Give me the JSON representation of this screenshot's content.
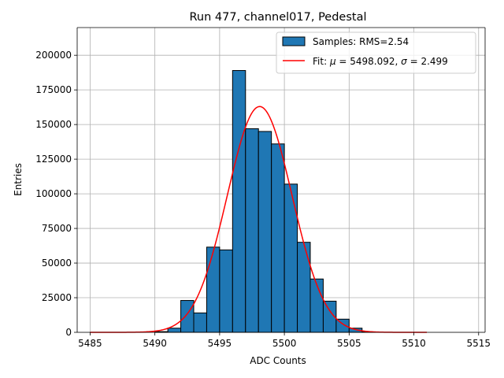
{
  "chart_data": {
    "type": "bar",
    "title": "Run 477, channel017, Pedestal",
    "xlabel": "ADC Counts",
    "ylabel": "Entries",
    "xlim": [
      5484.0,
      5515.5
    ],
    "ylim": [
      0,
      220000
    ],
    "xticks": [
      5485,
      5490,
      5495,
      5500,
      5505,
      5510,
      5515
    ],
    "yticks": [
      0,
      25000,
      50000,
      75000,
      100000,
      125000,
      150000,
      175000,
      200000
    ],
    "grid": true,
    "legend_position": "top-right",
    "bin_width": 1,
    "bins": [
      {
        "left": 5490,
        "count": 500
      },
      {
        "left": 5491,
        "count": 3000
      },
      {
        "left": 5492,
        "count": 23000
      },
      {
        "left": 5493,
        "count": 14000
      },
      {
        "left": 5494,
        "count": 61500
      },
      {
        "left": 5495,
        "count": 59500
      },
      {
        "left": 5496,
        "count": 189000
      },
      {
        "left": 5497,
        "count": 147000
      },
      {
        "left": 5498,
        "count": 145000
      },
      {
        "left": 5499,
        "count": 136000
      },
      {
        "left": 5500,
        "count": 107000
      },
      {
        "left": 5501,
        "count": 65000
      },
      {
        "left": 5502,
        "count": 38500
      },
      {
        "left": 5503,
        "count": 22500
      },
      {
        "left": 5504,
        "count": 9500
      },
      {
        "left": 5505,
        "count": 3000
      },
      {
        "left": 5506,
        "count": 300
      }
    ],
    "fit": {
      "mu": 5498.092,
      "sigma": 2.499,
      "amplitude": 163000,
      "x_range": [
        5485,
        5511
      ]
    },
    "series": [
      {
        "name": "Samples: RMS=2.54",
        "kind": "histogram",
        "color": "#1f77b4"
      },
      {
        "name": "Fit",
        "kind": "line",
        "color": "#ff0000"
      }
    ],
    "legend": {
      "samples_label": "Samples: RMS=2.54",
      "fit_prefix": "Fit: ",
      "mu_symbol": "μ",
      "mu_text": " = 5498.092, ",
      "sigma_symbol": "σ",
      "sigma_text": " = 2.499"
    }
  }
}
